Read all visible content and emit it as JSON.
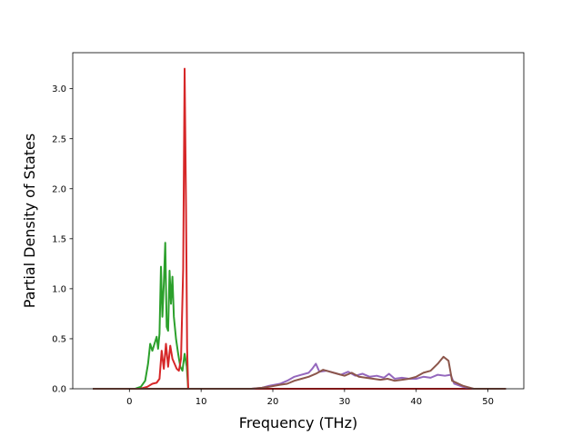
{
  "chart_data": {
    "type": "line",
    "title": "",
    "xlabel": "Frequency (THz)",
    "ylabel": "Partial Density of States",
    "xlim": [
      -7.9,
      55.0
    ],
    "ylim": [
      0.0,
      3.36
    ],
    "xticks": [
      0,
      10,
      20,
      30,
      40,
      50
    ],
    "xtick_labels": [
      "0",
      "10",
      "20",
      "30",
      "40",
      "50"
    ],
    "yticks": [
      0.0,
      0.5,
      1.0,
      1.5,
      2.0,
      2.5,
      3.0
    ],
    "ytick_labels": [
      "0.0",
      "0.5",
      "1.0",
      "1.5",
      "2.0",
      "2.5",
      "3.0"
    ],
    "grid": false,
    "legend": "none",
    "series": [
      {
        "color": "#1f77b4",
        "points": [
          [
            -5.1,
            0
          ],
          [
            52.5,
            0
          ]
        ]
      },
      {
        "color": "#ff7f0e",
        "points": [
          [
            -5.1,
            0
          ],
          [
            52.5,
            0
          ]
        ]
      },
      {
        "color": "#2ca02c",
        "points": [
          [
            -5.1,
            0
          ],
          [
            0.8,
            0
          ],
          [
            1.6,
            0.02
          ],
          [
            2.2,
            0.08
          ],
          [
            2.6,
            0.25
          ],
          [
            2.9,
            0.45
          ],
          [
            3.2,
            0.38
          ],
          [
            3.5,
            0.45
          ],
          [
            3.8,
            0.52
          ],
          [
            4.0,
            0.4
          ],
          [
            4.2,
            0.55
          ],
          [
            4.4,
            1.22
          ],
          [
            4.6,
            0.72
          ],
          [
            4.8,
            1.05
          ],
          [
            5.0,
            1.46
          ],
          [
            5.2,
            0.62
          ],
          [
            5.4,
            0.58
          ],
          [
            5.6,
            1.18
          ],
          [
            5.8,
            0.85
          ],
          [
            6.0,
            1.12
          ],
          [
            6.2,
            0.72
          ],
          [
            6.5,
            0.5
          ],
          [
            6.8,
            0.35
          ],
          [
            7.1,
            0.22
          ],
          [
            7.4,
            0.18
          ],
          [
            7.7,
            0.35
          ],
          [
            8.0,
            0.22
          ],
          [
            8.2,
            0
          ],
          [
            52.5,
            0
          ]
        ]
      },
      {
        "color": "#d62728",
        "points": [
          [
            -5.1,
            0
          ],
          [
            1.5,
            0
          ],
          [
            2.5,
            0.02
          ],
          [
            3.2,
            0.05
          ],
          [
            3.8,
            0.06
          ],
          [
            4.2,
            0.1
          ],
          [
            4.5,
            0.38
          ],
          [
            4.8,
            0.2
          ],
          [
            5.1,
            0.45
          ],
          [
            5.4,
            0.22
          ],
          [
            5.7,
            0.43
          ],
          [
            6.0,
            0.3
          ],
          [
            6.3,
            0.25
          ],
          [
            6.6,
            0.2
          ],
          [
            6.9,
            0.18
          ],
          [
            7.2,
            0.3
          ],
          [
            7.5,
            1.2
          ],
          [
            7.7,
            3.2
          ],
          [
            7.9,
            1.8
          ],
          [
            8.05,
            0.4
          ],
          [
            8.2,
            0
          ],
          [
            52.5,
            0
          ]
        ]
      },
      {
        "color": "#9467bd",
        "points": [
          [
            -5.1,
            0
          ],
          [
            17.0,
            0
          ],
          [
            18.5,
            0.01
          ],
          [
            19.5,
            0.03
          ],
          [
            21.0,
            0.05
          ],
          [
            22.0,
            0.08
          ],
          [
            23.0,
            0.12
          ],
          [
            24.0,
            0.14
          ],
          [
            25.0,
            0.16
          ],
          [
            25.5,
            0.2
          ],
          [
            26.0,
            0.25
          ],
          [
            26.5,
            0.17
          ],
          [
            27.5,
            0.18
          ],
          [
            28.5,
            0.16
          ],
          [
            29.5,
            0.14
          ],
          [
            30.5,
            0.17
          ],
          [
            31.5,
            0.13
          ],
          [
            32.5,
            0.15
          ],
          [
            33.5,
            0.12
          ],
          [
            34.5,
            0.13
          ],
          [
            35.5,
            0.11
          ],
          [
            36.2,
            0.15
          ],
          [
            37.0,
            0.1
          ],
          [
            38.0,
            0.11
          ],
          [
            39.0,
            0.1
          ],
          [
            40.0,
            0.1
          ],
          [
            41.0,
            0.12
          ],
          [
            42.0,
            0.11
          ],
          [
            43.0,
            0.14
          ],
          [
            44.0,
            0.13
          ],
          [
            44.8,
            0.14
          ],
          [
            45.3,
            0.05
          ],
          [
            46.5,
            0.02
          ],
          [
            48.0,
            0
          ],
          [
            52.5,
            0
          ]
        ]
      },
      {
        "color": "#8c564b",
        "points": [
          [
            -5.1,
            0
          ],
          [
            17.0,
            0
          ],
          [
            18.5,
            0.01
          ],
          [
            19.5,
            0.02
          ],
          [
            21.0,
            0.04
          ],
          [
            22.0,
            0.05
          ],
          [
            23.0,
            0.08
          ],
          [
            24.0,
            0.1
          ],
          [
            25.0,
            0.12
          ],
          [
            26.0,
            0.15
          ],
          [
            27.0,
            0.19
          ],
          [
            28.0,
            0.17
          ],
          [
            29.0,
            0.15
          ],
          [
            30.0,
            0.13
          ],
          [
            31.0,
            0.16
          ],
          [
            32.0,
            0.12
          ],
          [
            33.0,
            0.11
          ],
          [
            34.0,
            0.1
          ],
          [
            35.0,
            0.09
          ],
          [
            36.0,
            0.1
          ],
          [
            37.0,
            0.08
          ],
          [
            38.0,
            0.09
          ],
          [
            39.0,
            0.1
          ],
          [
            40.0,
            0.12
          ],
          [
            41.0,
            0.16
          ],
          [
            42.0,
            0.18
          ],
          [
            43.0,
            0.25
          ],
          [
            43.8,
            0.32
          ],
          [
            44.5,
            0.28
          ],
          [
            45.0,
            0.08
          ],
          [
            46.5,
            0.03
          ],
          [
            48.0,
            0
          ],
          [
            52.5,
            0
          ]
        ]
      }
    ]
  }
}
